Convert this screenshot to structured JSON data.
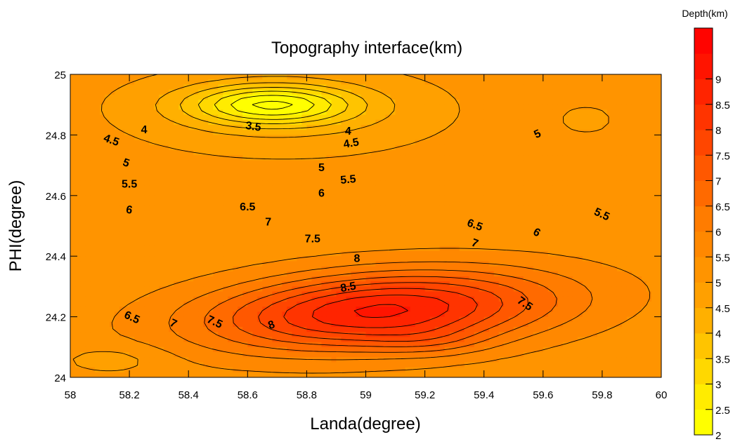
{
  "chart_data": {
    "type": "contour",
    "title": "Topography interface(km)",
    "xlabel": "Landa(degree)",
    "ylabel": "PHI(degree)",
    "xlim": [
      58,
      60
    ],
    "ylim": [
      24,
      25
    ],
    "x_ticks": [
      "58",
      "58.2",
      "58.4",
      "58.6",
      "58.8",
      "59",
      "59.2",
      "59.4",
      "59.6",
      "59.8",
      "60"
    ],
    "y_ticks": [
      "24",
      "24.2",
      "24.4",
      "24.6",
      "24.8",
      "25"
    ],
    "colorbar": {
      "title": "Depth(km)",
      "min": 2,
      "max": 10,
      "levels": [
        2,
        2.5,
        3,
        3.5,
        4,
        4.5,
        5,
        5.5,
        6,
        6.5,
        7,
        7.5,
        8,
        8.5,
        9,
        9.5,
        10
      ],
      "labels": [
        "2",
        "2.5",
        "3",
        "3.5",
        "4",
        "4.5",
        "5",
        "5.5",
        "6",
        "6.5",
        "7",
        "7.5",
        "8",
        "8.5",
        "9"
      ],
      "colors": [
        "#ffff00",
        "#ffec00",
        "#ffd800",
        "#ffc400",
        "#ffb000",
        "#ffa000",
        "#ff9400",
        "#ff8800",
        "#ff7c00",
        "#ff6a00",
        "#ff5800",
        "#ff4600",
        "#ff3400",
        "#ff2400",
        "#ff1400",
        "#ff0400"
      ]
    },
    "contour_labels": [
      {
        "text": "3.5",
        "x": 58.62,
        "y": 24.83,
        "angle": 8
      },
      {
        "text": "4",
        "x": 58.25,
        "y": 24.82,
        "angle": 0
      },
      {
        "text": "4",
        "x": 58.94,
        "y": 24.815,
        "angle": 0
      },
      {
        "text": "4.5",
        "x": 58.14,
        "y": 24.785,
        "angle": 20
      },
      {
        "text": "4.5",
        "x": 58.95,
        "y": 24.775,
        "angle": -10
      },
      {
        "text": "5",
        "x": 58.85,
        "y": 24.695,
        "angle": 0
      },
      {
        "text": "5",
        "x": 58.19,
        "y": 24.71,
        "angle": 20
      },
      {
        "text": "5",
        "x": 59.58,
        "y": 24.805,
        "angle": -25
      },
      {
        "text": "5.5",
        "x": 58.2,
        "y": 24.64,
        "angle": 0
      },
      {
        "text": "5.5",
        "x": 58.94,
        "y": 24.655,
        "angle": -5
      },
      {
        "text": "5.5",
        "x": 59.8,
        "y": 24.54,
        "angle": 25
      },
      {
        "text": "6",
        "x": 58.85,
        "y": 24.61,
        "angle": 0
      },
      {
        "text": "6",
        "x": 58.2,
        "y": 24.555,
        "angle": 10
      },
      {
        "text": "6",
        "x": 59.58,
        "y": 24.48,
        "angle": 30
      },
      {
        "text": "6.5",
        "x": 58.6,
        "y": 24.565,
        "angle": 0
      },
      {
        "text": "6.5",
        "x": 59.37,
        "y": 24.505,
        "angle": 20
      },
      {
        "text": "6.5",
        "x": 58.21,
        "y": 24.2,
        "angle": 25
      },
      {
        "text": "7",
        "x": 58.67,
        "y": 24.515,
        "angle": 0
      },
      {
        "text": "7",
        "x": 59.37,
        "y": 24.445,
        "angle": 20
      },
      {
        "text": "7",
        "x": 58.35,
        "y": 24.18,
        "angle": 25
      },
      {
        "text": "7.5",
        "x": 58.82,
        "y": 24.46,
        "angle": 0
      },
      {
        "text": "7.5",
        "x": 59.54,
        "y": 24.245,
        "angle": 35
      },
      {
        "text": "7.5",
        "x": 58.49,
        "y": 24.185,
        "angle": 25
      },
      {
        "text": "8",
        "x": 58.97,
        "y": 24.395,
        "angle": 0
      },
      {
        "text": "8",
        "x": 58.68,
        "y": 24.175,
        "angle": -20
      },
      {
        "text": "8.5",
        "x": 58.94,
        "y": 24.3,
        "angle": -10
      }
    ]
  }
}
